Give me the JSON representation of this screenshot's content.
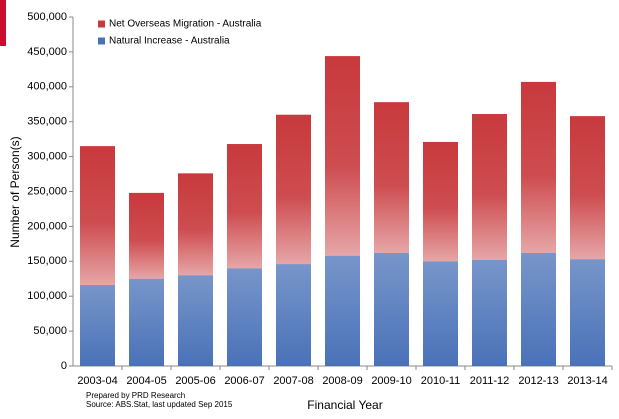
{
  "chart_data": {
    "type": "stacked_bar",
    "x_label": "Financial Year",
    "y_label": "Number of Person(s)",
    "categories": [
      "2003-04",
      "2004-05",
      "2005-06",
      "2006-07",
      "2007-08",
      "2008-09",
      "2009-10",
      "2010-11",
      "2011-12",
      "2012-13",
      "2013-14"
    ],
    "series": [
      {
        "name": "Natural Increase - Australia",
        "color": "#4a72b8",
        "values": [
          116000,
          125000,
          130000,
          140000,
          146000,
          158000,
          162000,
          150000,
          152000,
          162000,
          153000
        ]
      },
      {
        "name": "Net Overseas Migration - Australia",
        "color": "#c8393c",
        "values": [
          199000,
          123000,
          146000,
          178000,
          214000,
          286000,
          216000,
          171000,
          209000,
          245000,
          205000
        ]
      }
    ],
    "ylim": [
      0,
      500000
    ],
    "yticks": [
      0,
      {
        "value": 50000,
        "label": "50,000"
      },
      {
        "value": 100000,
        "label": "100,000"
      },
      {
        "value": 150000,
        "label": "150,000"
      },
      {
        "value": 200000,
        "label": "200,000"
      },
      {
        "value": 250000,
        "label": "250,000"
      },
      {
        "value": 300000,
        "label": "300,000"
      },
      {
        "value": 350000,
        "label": "350,000"
      },
      {
        "value": 400000,
        "label": "400,000"
      },
      {
        "value": 450000,
        "label": "450,000"
      },
      {
        "value": 500000,
        "label": "500,000"
      }
    ],
    "notes": [
      "Prepared by PRD Research",
      "Source: ABS.Stat, last updated Sep 2015"
    ]
  }
}
